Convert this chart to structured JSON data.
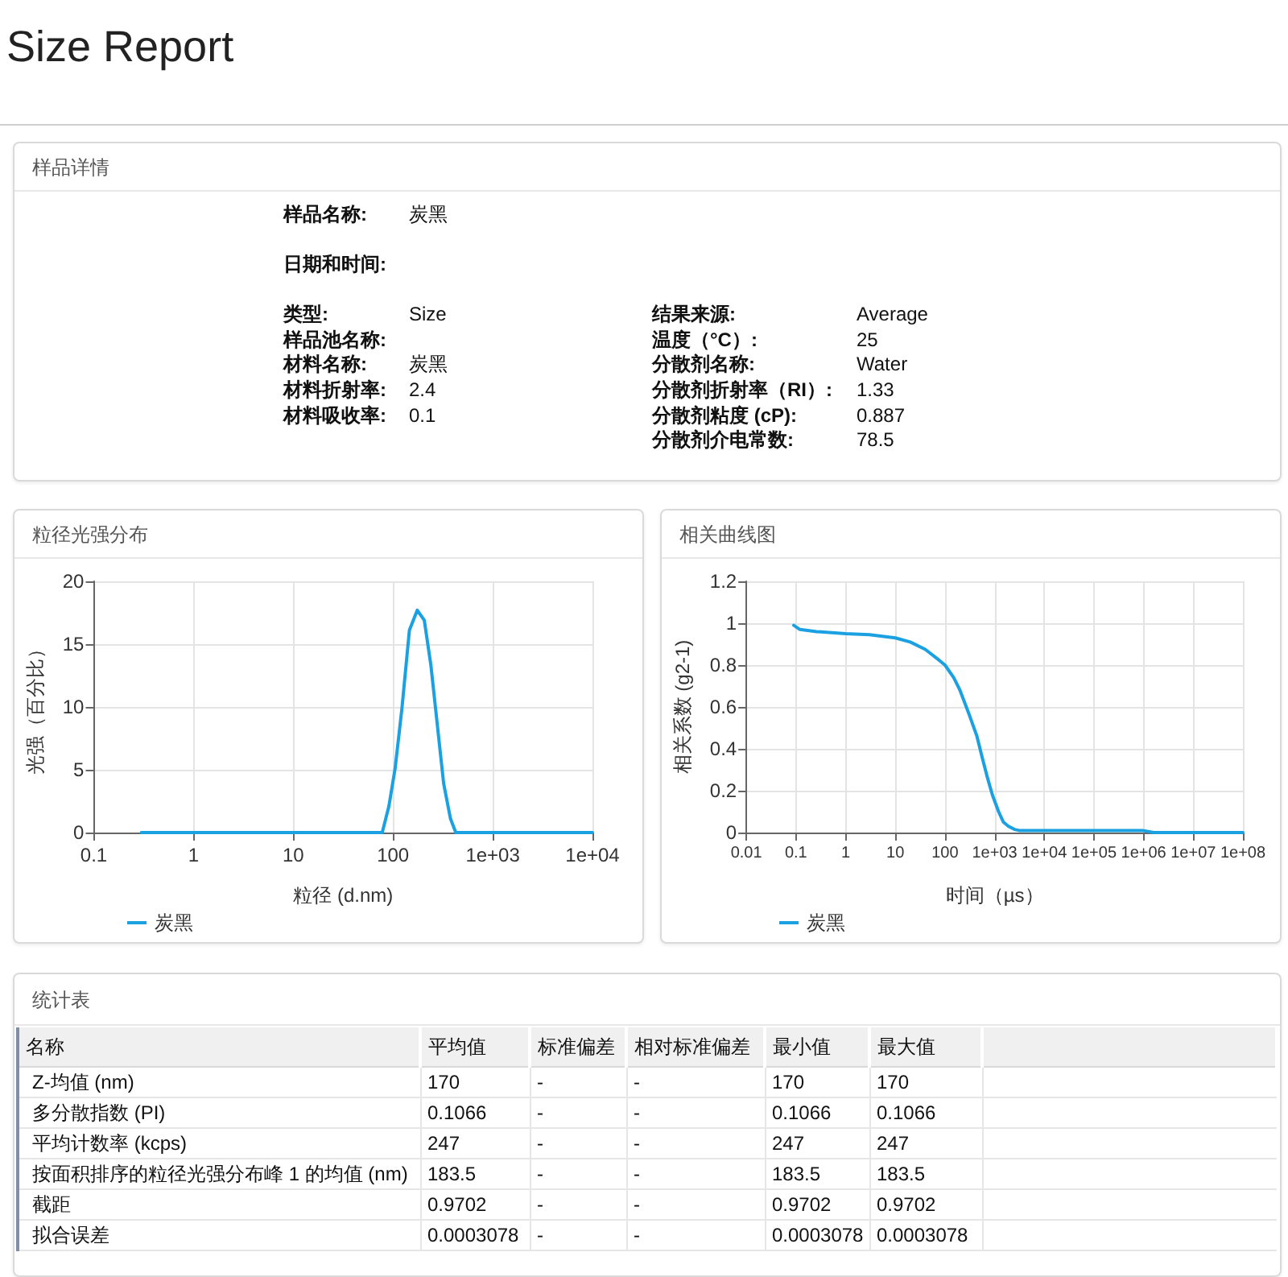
{
  "chart_data": [
    {
      "type": "other",
      "title": "Size Report"
    },
    {
      "type": "other",
      "title": "样品详情",
      "annotations": [
        "样品名称:",
        "炭黑",
        "日期和时间:",
        "类型:",
        "Size",
        "样品池名称:",
        "材料名称:",
        "炭黑",
        "材料折射率:",
        "2.4",
        "材料吸收率:",
        "0.1",
        "结果来源:",
        "Average",
        "温度（°C）:",
        "25",
        "分散剂名称:",
        "Water",
        "分散剂折射率（RI）:",
        "1.33",
        "分散剂粘度 (cP):",
        "0.887",
        "分散剂介电常数:",
        "78.5"
      ]
    },
    {
      "type": "line",
      "title": "粒径光强分布",
      "xlabel": "粒径 (d.nm)",
      "ylabel": "光强（百分比）",
      "log": "x",
      "x": [
        0.3,
        78,
        91,
        105,
        123,
        146,
        175,
        206,
        240,
        278,
        322,
        377,
        426,
        10000
      ],
      "series": [
        {
          "name": "炭黑",
          "color": "#1ba1e2",
          "values": [
            0,
            0,
            2.1,
            5.1,
            9.9,
            16.1,
            17.7,
            16.9,
            13.3,
            8.6,
            3.9,
            1.1,
            0,
            0
          ]
        }
      ],
      "xlim": [
        0.1,
        10000
      ],
      "xticks": [
        0.1,
        1,
        10,
        100,
        {
          "value": 1000,
          "label": "1e+03"
        },
        {
          "value": 10000,
          "label": "1e+04"
        }
      ],
      "ylim": [
        0,
        20
      ],
      "yticks": [
        0,
        5,
        10,
        15,
        20
      ],
      "grid": true,
      "legend": "bottom left"
    },
    {
      "type": "line",
      "title": "相关曲线图",
      "xlabel": "时间（µs）",
      "ylabel": "相关系数 (g2-1)",
      "log": "x",
      "x": [
        0.09,
        0.12,
        0.26,
        1,
        3,
        10,
        20,
        40,
        70,
        100,
        150,
        200,
        300,
        440,
        560,
        720,
        900,
        1200,
        1500,
        1900,
        2500,
        3100,
        66000,
        950000,
        1600000,
        100000000
      ],
      "series": [
        {
          "name": "炭黑",
          "color": "#1ba1e2",
          "values": [
            0.99,
            0.97,
            0.96,
            0.95,
            0.945,
            0.93,
            0.91,
            0.875,
            0.83,
            0.8,
            0.74,
            0.68,
            0.57,
            0.46,
            0.36,
            0.26,
            0.18,
            0.1,
            0.05,
            0.03,
            0.015,
            0.01,
            0.01,
            0.01,
            0,
            0
          ]
        }
      ],
      "xlim": [
        0.01,
        100000000
      ],
      "xticks": [
        0.01,
        0.1,
        1,
        10,
        100,
        {
          "value": 1000,
          "label": "1e+03"
        },
        {
          "value": 10000,
          "label": "1e+04"
        },
        {
          "value": 100000,
          "label": "1e+05"
        },
        {
          "value": 1000000,
          "label": "1e+06"
        },
        {
          "value": 10000000,
          "label": "1e+07"
        },
        {
          "value": 100000000,
          "label": "1e+08"
        }
      ],
      "ylim": [
        0,
        1.2
      ],
      "yticks": [
        0,
        0.2,
        0.4,
        0.6,
        0.8,
        1,
        1.2
      ],
      "grid": true,
      "legend": "bottom left"
    },
    {
      "type": "other",
      "title": "统计表",
      "categories": [
        "名称",
        "平均值",
        "标准偏差",
        "相对标准偏差",
        "最小值",
        "最大值"
      ],
      "annotations": [
        "Z-均值 (nm)",
        "170",
        "-",
        "-",
        "170",
        "170",
        "多分散指数 (PI)",
        "0.1066",
        "-",
        "-",
        "0.1066",
        "0.1066",
        "平均计数率 (kcps)",
        "247",
        "-",
        "-",
        "247",
        "247",
        "按面积排序的粒径光强分布峰 1 的均值 (nm)",
        "183.5",
        "-",
        "-",
        "183.5",
        "183.5",
        "截距",
        "0.9702",
        "-",
        "-",
        "0.9702",
        "0.9702",
        "拟合误差",
        "0.0003078",
        "-",
        "-",
        "0.0003078",
        "0.0003078"
      ]
    }
  ]
}
